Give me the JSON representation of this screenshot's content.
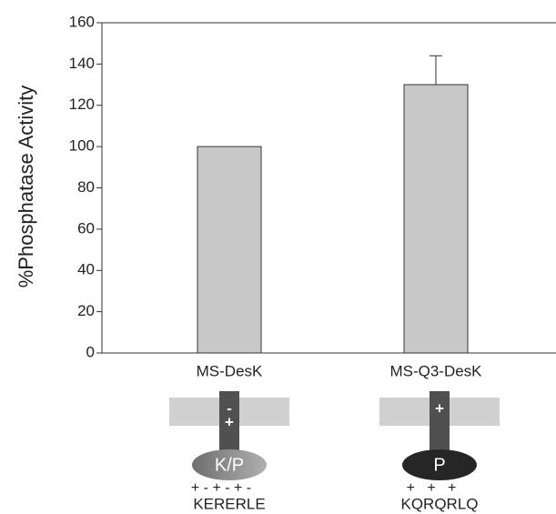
{
  "chart_data": {
    "type": "bar",
    "ylabel": "%Phosphatase Activity",
    "categories": [
      "MS-DesK",
      "MS-Q3-DesK"
    ],
    "values": [
      100,
      130
    ],
    "errors": [
      null,
      14
    ],
    "color": "#c8c8c8",
    "ylim": [
      0,
      160
    ],
    "yticks": [
      0,
      20,
      40,
      60,
      80,
      100,
      120,
      140,
      160
    ]
  },
  "diagrams": [
    {
      "domain_label": "K/P",
      "signs": [
        "-",
        "+"
      ],
      "charges": "+ - + - + -",
      "sequence": "KERERLE"
    },
    {
      "domain_label": "P",
      "signs": [
        "+"
      ],
      "charges": "+   +   +",
      "sequence": "KQRQRLQ"
    }
  ]
}
